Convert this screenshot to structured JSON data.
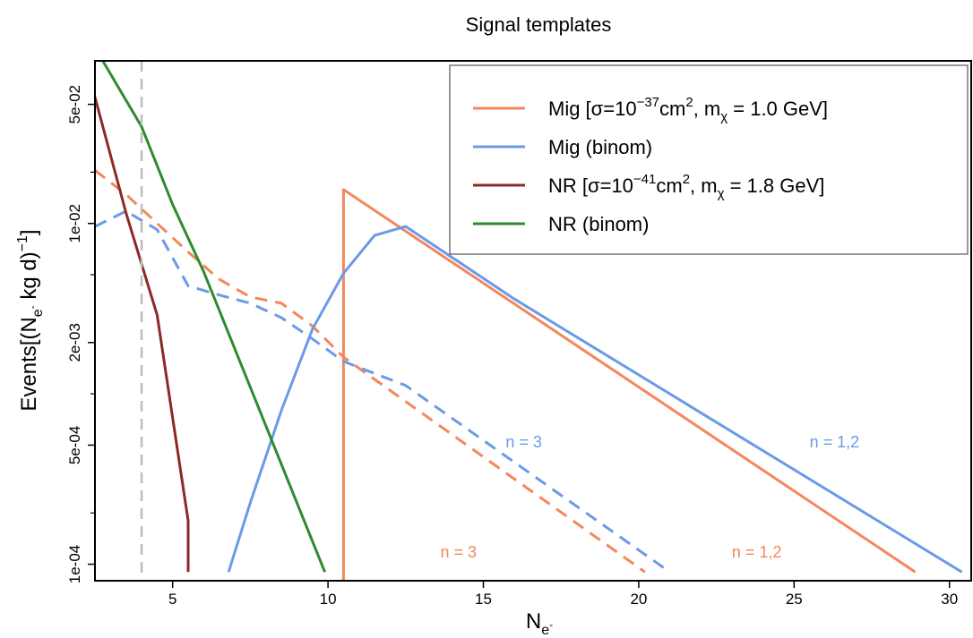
{
  "chart_data": {
    "type": "line",
    "title": "Signal templates",
    "xlabel": "N_e-",
    "ylabel": "Events[(N_e- kg d)^-1]",
    "xlim": [
      2.5,
      30.7
    ],
    "ylim": [
      8e-05,
      0.09
    ],
    "yscale": "log",
    "grid": false,
    "x_ticks": [
      5,
      10,
      15,
      20,
      25,
      30
    ],
    "y_ticks": [
      {
        "value": 0.05,
        "label": "5e-02"
      },
      {
        "value": 0.01,
        "label": "1e-02"
      },
      {
        "value": 0.002,
        "label": "2e-03"
      },
      {
        "value": 0.0005,
        "label": "5e-04"
      },
      {
        "value": 0.0001,
        "label": "1e-04"
      }
    ],
    "y_minor_ticks": [
      0.02,
      0.005,
      0.001,
      0.0002
    ],
    "threshold_line": {
      "x": 4,
      "color": "#bdbdbd",
      "style": "dashed"
    },
    "legend_position": "top-right",
    "legend": [
      {
        "id": "mig",
        "prefix": "Mig [σ=10",
        "sup1": "−37",
        "mid": "cm",
        "sup2": "2",
        "mid2": ", m",
        "sub": "χ",
        "suffix": " =  1.0 GeV]",
        "color": "#f4875b"
      },
      {
        "id": "migb",
        "text": "Mig (binom)",
        "color": "#6b9ae6"
      },
      {
        "id": "nr",
        "prefix": "NR  [σ=10",
        "sup1": "−41",
        "mid": "cm",
        "sup2": "2",
        "mid2": ", m",
        "sub": "χ",
        "suffix": " =  1.8 GeV]",
        "color": "#8b2a25"
      },
      {
        "id": "nrb",
        "text": "NR (binom)",
        "color": "#2e8b2e"
      }
    ],
    "series": [
      {
        "id": "mig_n12",
        "color": "#f4875b",
        "dash": false,
        "x": [
          10.5,
          10.5,
          28.9
        ],
        "y": [
          5.01e-05,
          0.0158,
          9e-05
        ]
      },
      {
        "id": "mig_n3",
        "color": "#f4875b",
        "dash": true,
        "x": [
          2.5,
          3.5,
          4.5,
          5.5,
          6.5,
          7.5,
          8.5,
          9.5,
          10.5,
          20.2
        ],
        "y": [
          0.0205,
          0.0148,
          0.01,
          0.0068,
          0.0047,
          0.0037,
          0.0034,
          0.0025,
          0.00164,
          9e-05
        ]
      },
      {
        "id": "migb_n12",
        "color": "#6b9ae6",
        "dash": false,
        "x": [
          6.8,
          7.5,
          8.5,
          9.5,
          10.5,
          11.5,
          12.5,
          16,
          30.4
        ],
        "y": [
          9e-05,
          0.00023,
          0.0008,
          0.0024,
          0.0051,
          0.0085,
          0.0096,
          0.0036,
          9e-05
        ]
      },
      {
        "id": "migb_n3",
        "color": "#6b9ae6",
        "dash": true,
        "x": [
          2.5,
          3.5,
          4.5,
          5.5,
          6.5,
          7.5,
          8.5,
          9.5,
          10.5,
          12.5,
          21
        ],
        "y": [
          0.0096,
          0.0118,
          0.0092,
          0.0043,
          0.0038,
          0.0034,
          0.0028,
          0.0021,
          0.00155,
          0.00112,
          9e-05
        ]
      },
      {
        "id": "nr",
        "color": "#8b2a25",
        "dash": false,
        "x": [
          2.5,
          3.5,
          4.5,
          5.5,
          5.5
        ],
        "y": [
          0.055,
          0.0115,
          0.0029,
          0.00018,
          9e-05
        ]
      },
      {
        "id": "nrb",
        "color": "#2e8b2e",
        "dash": false,
        "x": [
          2.75,
          4,
          5,
          6,
          9.9
        ],
        "y": [
          0.09,
          0.037,
          0.0129,
          0.0052,
          9e-05
        ]
      }
    ],
    "annotations": [
      {
        "text": "n = 3",
        "x": 16.3,
        "y": 0.00052,
        "color": "#6b9ae6"
      },
      {
        "text": "n = 1,2",
        "x": 26.3,
        "y": 0.00052,
        "color": "#6b9ae6"
      },
      {
        "text": "n = 3",
        "x": 14.2,
        "y": 0.000118,
        "color": "#f4875b"
      },
      {
        "text": "n = 1,2",
        "x": 23.8,
        "y": 0.000118,
        "color": "#f4875b"
      }
    ]
  }
}
